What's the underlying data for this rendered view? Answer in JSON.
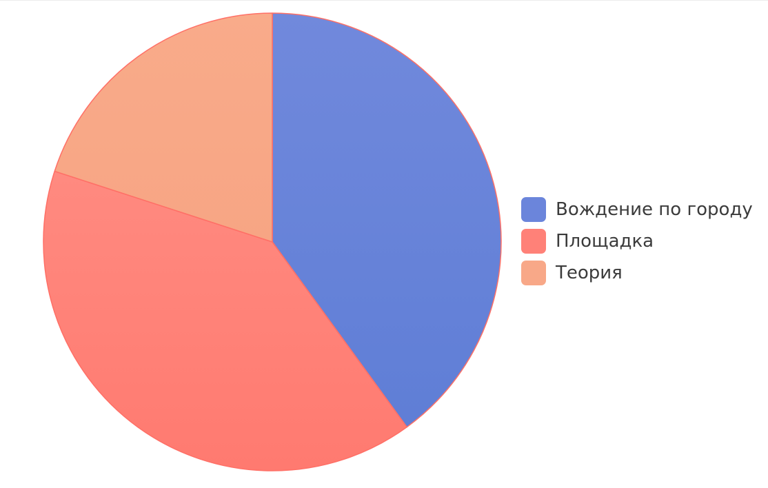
{
  "chart_data": {
    "type": "pie",
    "categories": [
      "Вождение по городу",
      "Площадка",
      "Теория"
    ],
    "values": [
      40,
      40,
      20
    ],
    "colors": [
      "#6b85db",
      "#ff8178",
      "#f8a888"
    ],
    "stroke_color": "#ff6f66",
    "legend_position": "right"
  }
}
